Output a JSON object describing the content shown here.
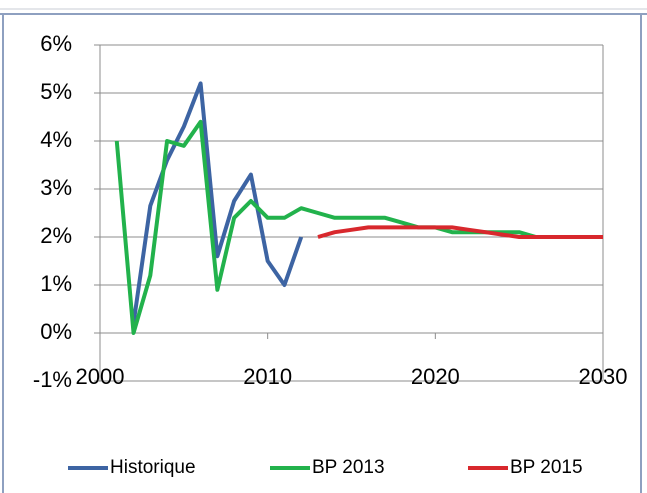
{
  "chart_data": {
    "type": "line",
    "x": [
      2001,
      2002,
      2003,
      2004,
      2005,
      2006,
      2007,
      2008,
      2009,
      2010,
      2011,
      2012,
      2013,
      2014,
      2015,
      2016,
      2017,
      2018,
      2019,
      2020,
      2021,
      2022,
      2023,
      2024,
      2025,
      2026,
      2027,
      2028,
      2029,
      2030
    ],
    "series": [
      {
        "name": "Historique",
        "color": "#3d64a3",
        "values": [
          null,
          0.2,
          2.65,
          3.6,
          4.3,
          5.2,
          1.6,
          2.75,
          3.3,
          1.5,
          1.0,
          2.0,
          null,
          null,
          null,
          null,
          null,
          null,
          null,
          null,
          null,
          null,
          null,
          null,
          null,
          null,
          null,
          null,
          null,
          null
        ]
      },
      {
        "name": "BP 2013",
        "color": "#22b24c",
        "values": [
          4.0,
          0.0,
          1.2,
          4.0,
          3.9,
          4.4,
          0.9,
          2.4,
          2.75,
          2.4,
          2.4,
          2.6,
          2.5,
          2.4,
          2.4,
          2.4,
          2.4,
          2.3,
          2.2,
          2.2,
          2.1,
          2.1,
          2.1,
          2.1,
          2.1,
          2.0,
          2.0,
          2.0,
          2.0,
          2.0
        ]
      },
      {
        "name": "BP 2015",
        "color": "#d8282d",
        "values": [
          null,
          null,
          null,
          null,
          null,
          null,
          null,
          null,
          null,
          null,
          null,
          null,
          2.0,
          2.1,
          2.15,
          2.2,
          2.2,
          2.2,
          2.2,
          2.2,
          2.2,
          2.15,
          2.1,
          2.05,
          2.0,
          2.0,
          2.0,
          2.0,
          2.0,
          2.0
        ]
      }
    ],
    "xlim": [
      2000,
      2030
    ],
    "xticks": [
      2000,
      2010,
      2020,
      2030
    ],
    "ylim": [
      -1,
      6
    ],
    "yticks": [
      {
        "value": -1,
        "label": "-1%"
      },
      {
        "value": 0,
        "label": "0%"
      },
      {
        "value": 1,
        "label": "1%"
      },
      {
        "value": 2,
        "label": "2%"
      },
      {
        "value": 3,
        "label": "3%"
      },
      {
        "value": 4,
        "label": "4%"
      },
      {
        "value": 5,
        "label": "5%"
      },
      {
        "value": 6,
        "label": "6%"
      }
    ],
    "grid": true,
    "legend": "bottom"
  }
}
